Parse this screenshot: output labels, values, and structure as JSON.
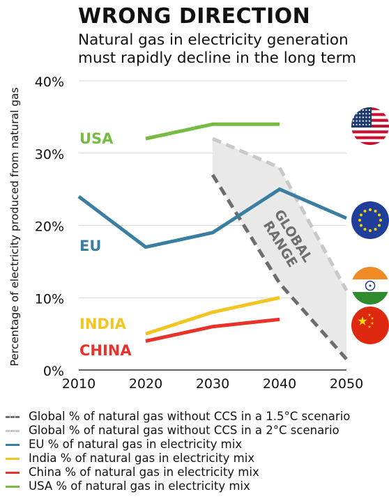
{
  "header": {
    "title": "WRONG DIRECTION",
    "subtitle_line1": "Natural gas in electricity generation",
    "subtitle_line2": "must rapidly decline in the long term"
  },
  "chart_data": {
    "type": "line",
    "ylabel": "Percentage of electricity produced from natural gas",
    "xlim": [
      2010,
      2050
    ],
    "ylim": [
      0,
      40
    ],
    "x_ticks": [
      "2010",
      "2020",
      "2030",
      "2040",
      "2050"
    ],
    "y_ticks": [
      "0%",
      "10%",
      "20%",
      "30%",
      "40%"
    ],
    "grid": true,
    "legend_position": "bottom",
    "range_label": "GLOBAL\nRANGE",
    "series": [
      {
        "key": "global15",
        "name": "Global % of natural gas without CCS in a 1.5°C scenario",
        "x": [
          2030,
          2040,
          2050
        ],
        "y": [
          27,
          12,
          1.5
        ],
        "color": "#6d6d6d",
        "dashed": true
      },
      {
        "key": "global2",
        "name": "Global % of natural gas without CCS in a 2°C scenario",
        "x": [
          2030,
          2040,
          2050
        ],
        "y": [
          32,
          28,
          11
        ],
        "color": "#c8c8c8",
        "dashed": true
      },
      {
        "key": "eu",
        "name": "EU % of natural gas in electricity mix",
        "label": "EU",
        "x": [
          2010,
          2020,
          2030,
          2040,
          2050
        ],
        "y": [
          24,
          17,
          19,
          25,
          21
        ],
        "color": "#3a7fa1",
        "dashed": false
      },
      {
        "key": "india",
        "name": "India % of natural gas in electricity mix",
        "label": "INDIA",
        "x": [
          2020,
          2030,
          2040
        ],
        "y": [
          5,
          8,
          10
        ],
        "color": "#f2c523",
        "dashed": false
      },
      {
        "key": "china",
        "name": "China % of natural gas in electricity mix",
        "label": "CHINA",
        "x": [
          2020,
          2030,
          2040
        ],
        "y": [
          4,
          6,
          7
        ],
        "color": "#e8322a",
        "dashed": false
      },
      {
        "key": "usa",
        "name": "USA % of natural gas in electricity mix",
        "label": "USA",
        "x": [
          2020,
          2030,
          2040
        ],
        "y": [
          32,
          34,
          34
        ],
        "color": "#76bc43",
        "dashed": false
      }
    ]
  },
  "flags": [
    "usa-flag-icon",
    "eu-flag-icon",
    "india-flag-icon",
    "china-flag-icon"
  ]
}
